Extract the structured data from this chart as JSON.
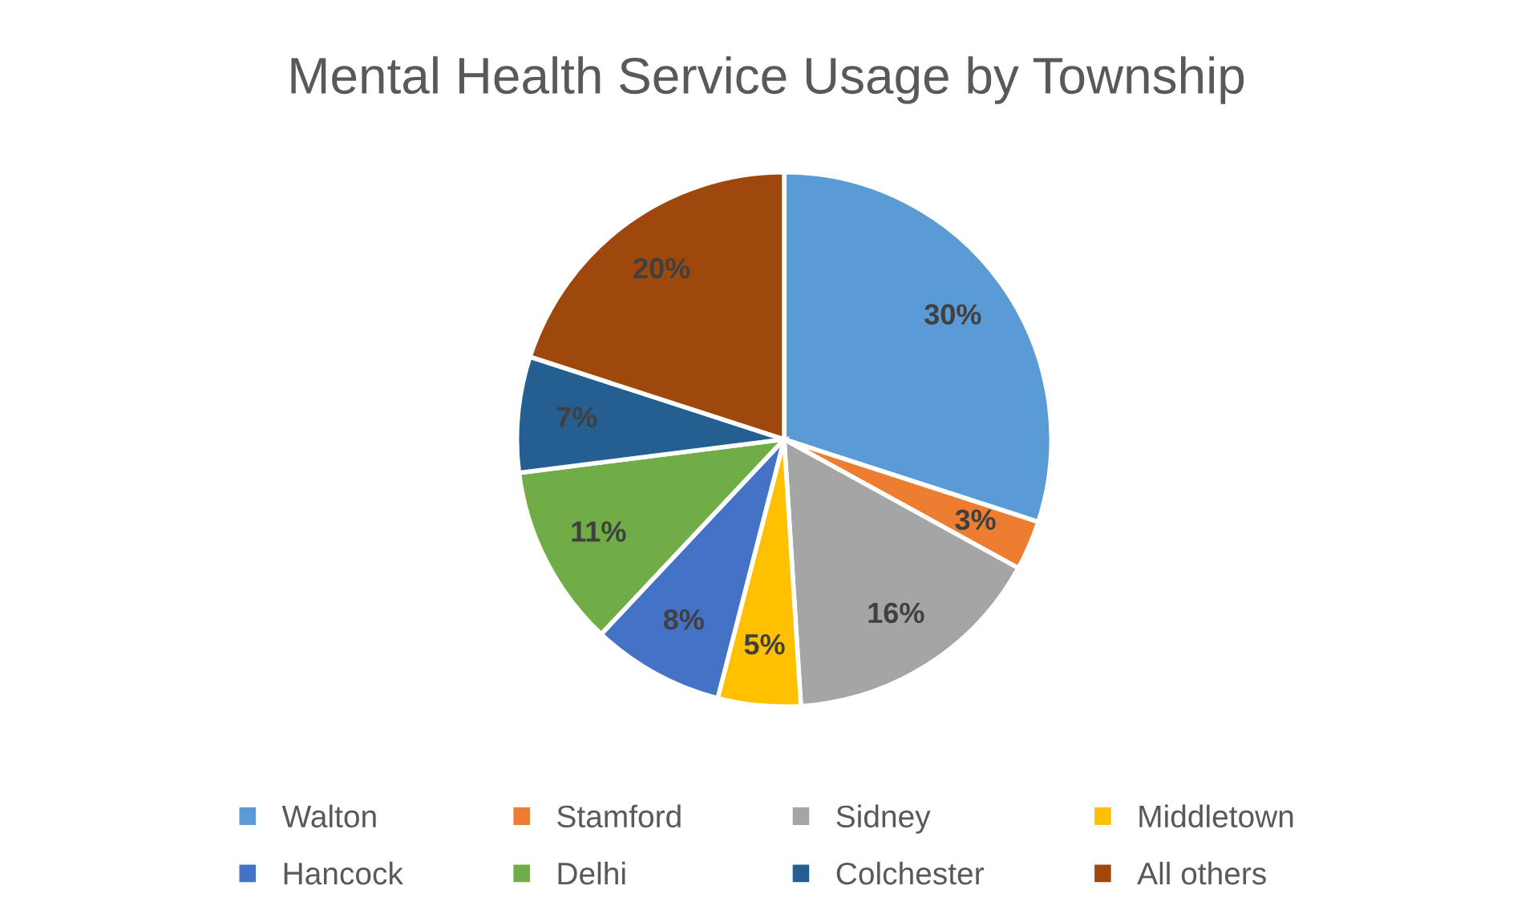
{
  "chart_data": {
    "type": "pie",
    "title": "Mental Health Service Usage by Township",
    "categories": [
      "Walton",
      "Stamford",
      "Sidney",
      "Middletown",
      "Hancock",
      "Delhi",
      "Colchester",
      "All others"
    ],
    "values": [
      30,
      3,
      16,
      5,
      8,
      11,
      7,
      20
    ],
    "colors": [
      "#5b9bd5",
      "#ed7d31",
      "#a5a5a5",
      "#ffc000",
      "#4472c4",
      "#70ad47",
      "#255e91",
      "#9e480e"
    ],
    "value_labels": [
      "30%",
      "3%",
      "16%",
      "5%",
      "8%",
      "11%",
      "7%",
      "20%"
    ],
    "legend": "bottom"
  }
}
